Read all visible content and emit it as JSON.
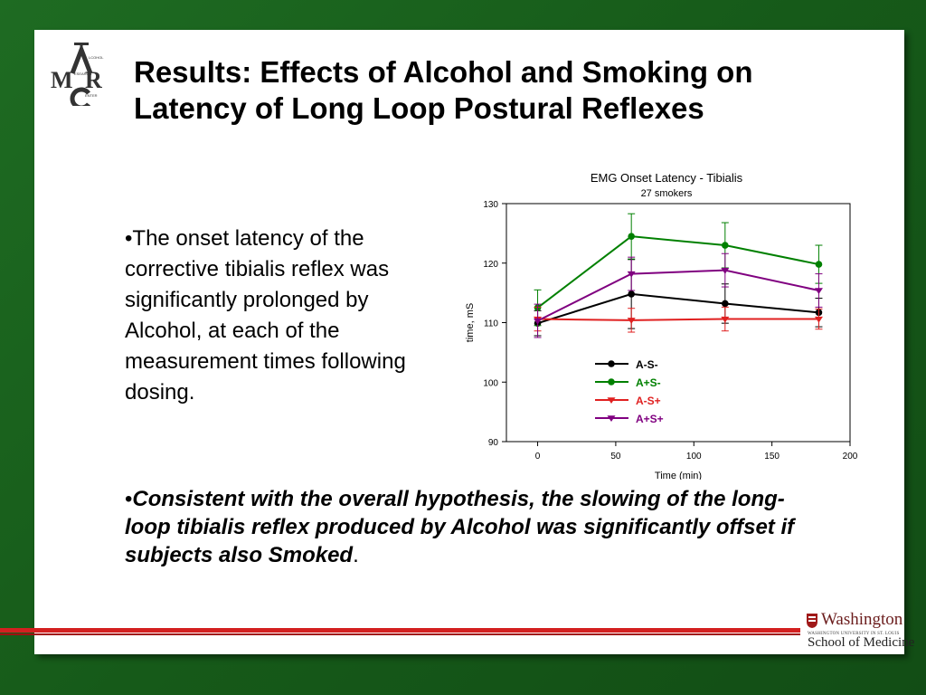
{
  "slide": {
    "title": "Results: Effects of Alcohol and Smoking on Latency of Long Loop Postural Reflexes",
    "body": "•The onset latency of the corrective tibialis reflex was significantly prolonged by Alcohol, at each of the measurement times following dosing.",
    "conclusion_bullet": "•",
    "conclusion_em": "Consistent with the overall hypothesis, the slowing of the long-loop tibialis reflex produced by Alcohol was significantly offset if subjects also Smoked",
    "conclusion_end": ".",
    "logo_name": "ACMCR-logo",
    "logo_text": "ALCOHOL RESEARCH CENTER",
    "footer_logo_word": "Washington",
    "footer_logo_sub": "WASHINGTON UNIVERSITY IN ST. LOUIS",
    "footer_logo_school": "School of Medicine",
    "colors": {
      "background": "#1b5e20",
      "rule": "#d32020"
    }
  },
  "chart_data": {
    "type": "line",
    "title": "EMG Onset Latency - Tibialis",
    "subtitle": "27 smokers",
    "xlabel": "Time (min)",
    "ylabel": "time, mS",
    "xlim": [
      -20,
      200
    ],
    "ylim": [
      90,
      130
    ],
    "xticks": [
      0,
      50,
      100,
      150,
      200
    ],
    "yticks": [
      90,
      100,
      110,
      120,
      130
    ],
    "grid": false,
    "legend_position": "center",
    "x": [
      0,
      60,
      120,
      180
    ],
    "series": [
      {
        "name": "A-S-",
        "color": "#000000",
        "marker": "circle",
        "values": [
          109.9,
          114.8,
          113.2,
          111.7
        ],
        "errors": [
          2.1,
          5.8,
          3.3,
          2.4
        ]
      },
      {
        "name": "A+S-",
        "color": "#008000",
        "marker": "circle",
        "values": [
          112.5,
          124.5,
          123.0,
          119.8
        ],
        "errors": [
          3.0,
          3.8,
          3.8,
          3.2
        ]
      },
      {
        "name": "A-S+",
        "color": "#e02020",
        "marker": "triangle-down",
        "values": [
          110.6,
          110.4,
          110.6,
          110.6
        ],
        "errors": [
          2.0,
          2.0,
          2.0,
          1.7
        ]
      },
      {
        "name": "A+S+",
        "color": "#800080",
        "marker": "triangle-down",
        "values": [
          110.3,
          118.2,
          118.8,
          115.4
        ],
        "errors": [
          2.8,
          2.8,
          2.8,
          2.8
        ]
      }
    ]
  }
}
